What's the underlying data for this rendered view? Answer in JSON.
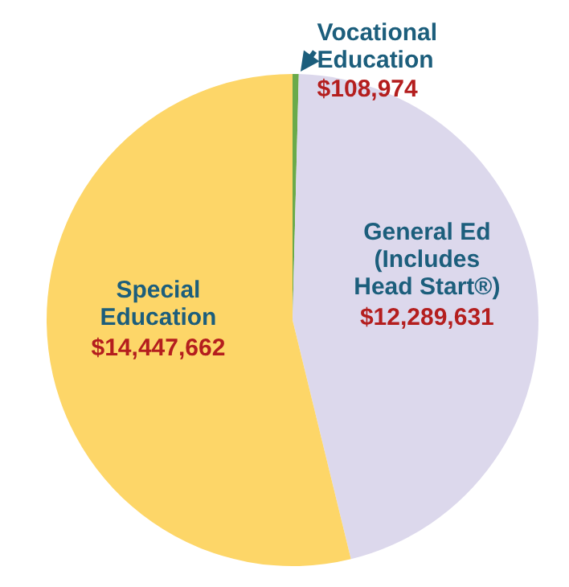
{
  "chart_data": {
    "type": "pie",
    "categories": [
      "Vocational\nEducation",
      "General Ed\n(Includes\nHead Start®)",
      "Special\nEducation"
    ],
    "values": [
      108974,
      12289631,
      14447662
    ],
    "value_labels": [
      "$108,974",
      "$12,289,631",
      "$14,447,662"
    ],
    "colors": [
      "#6aaa4a",
      "#dcd8ec",
      "#fdd668"
    ]
  }
}
